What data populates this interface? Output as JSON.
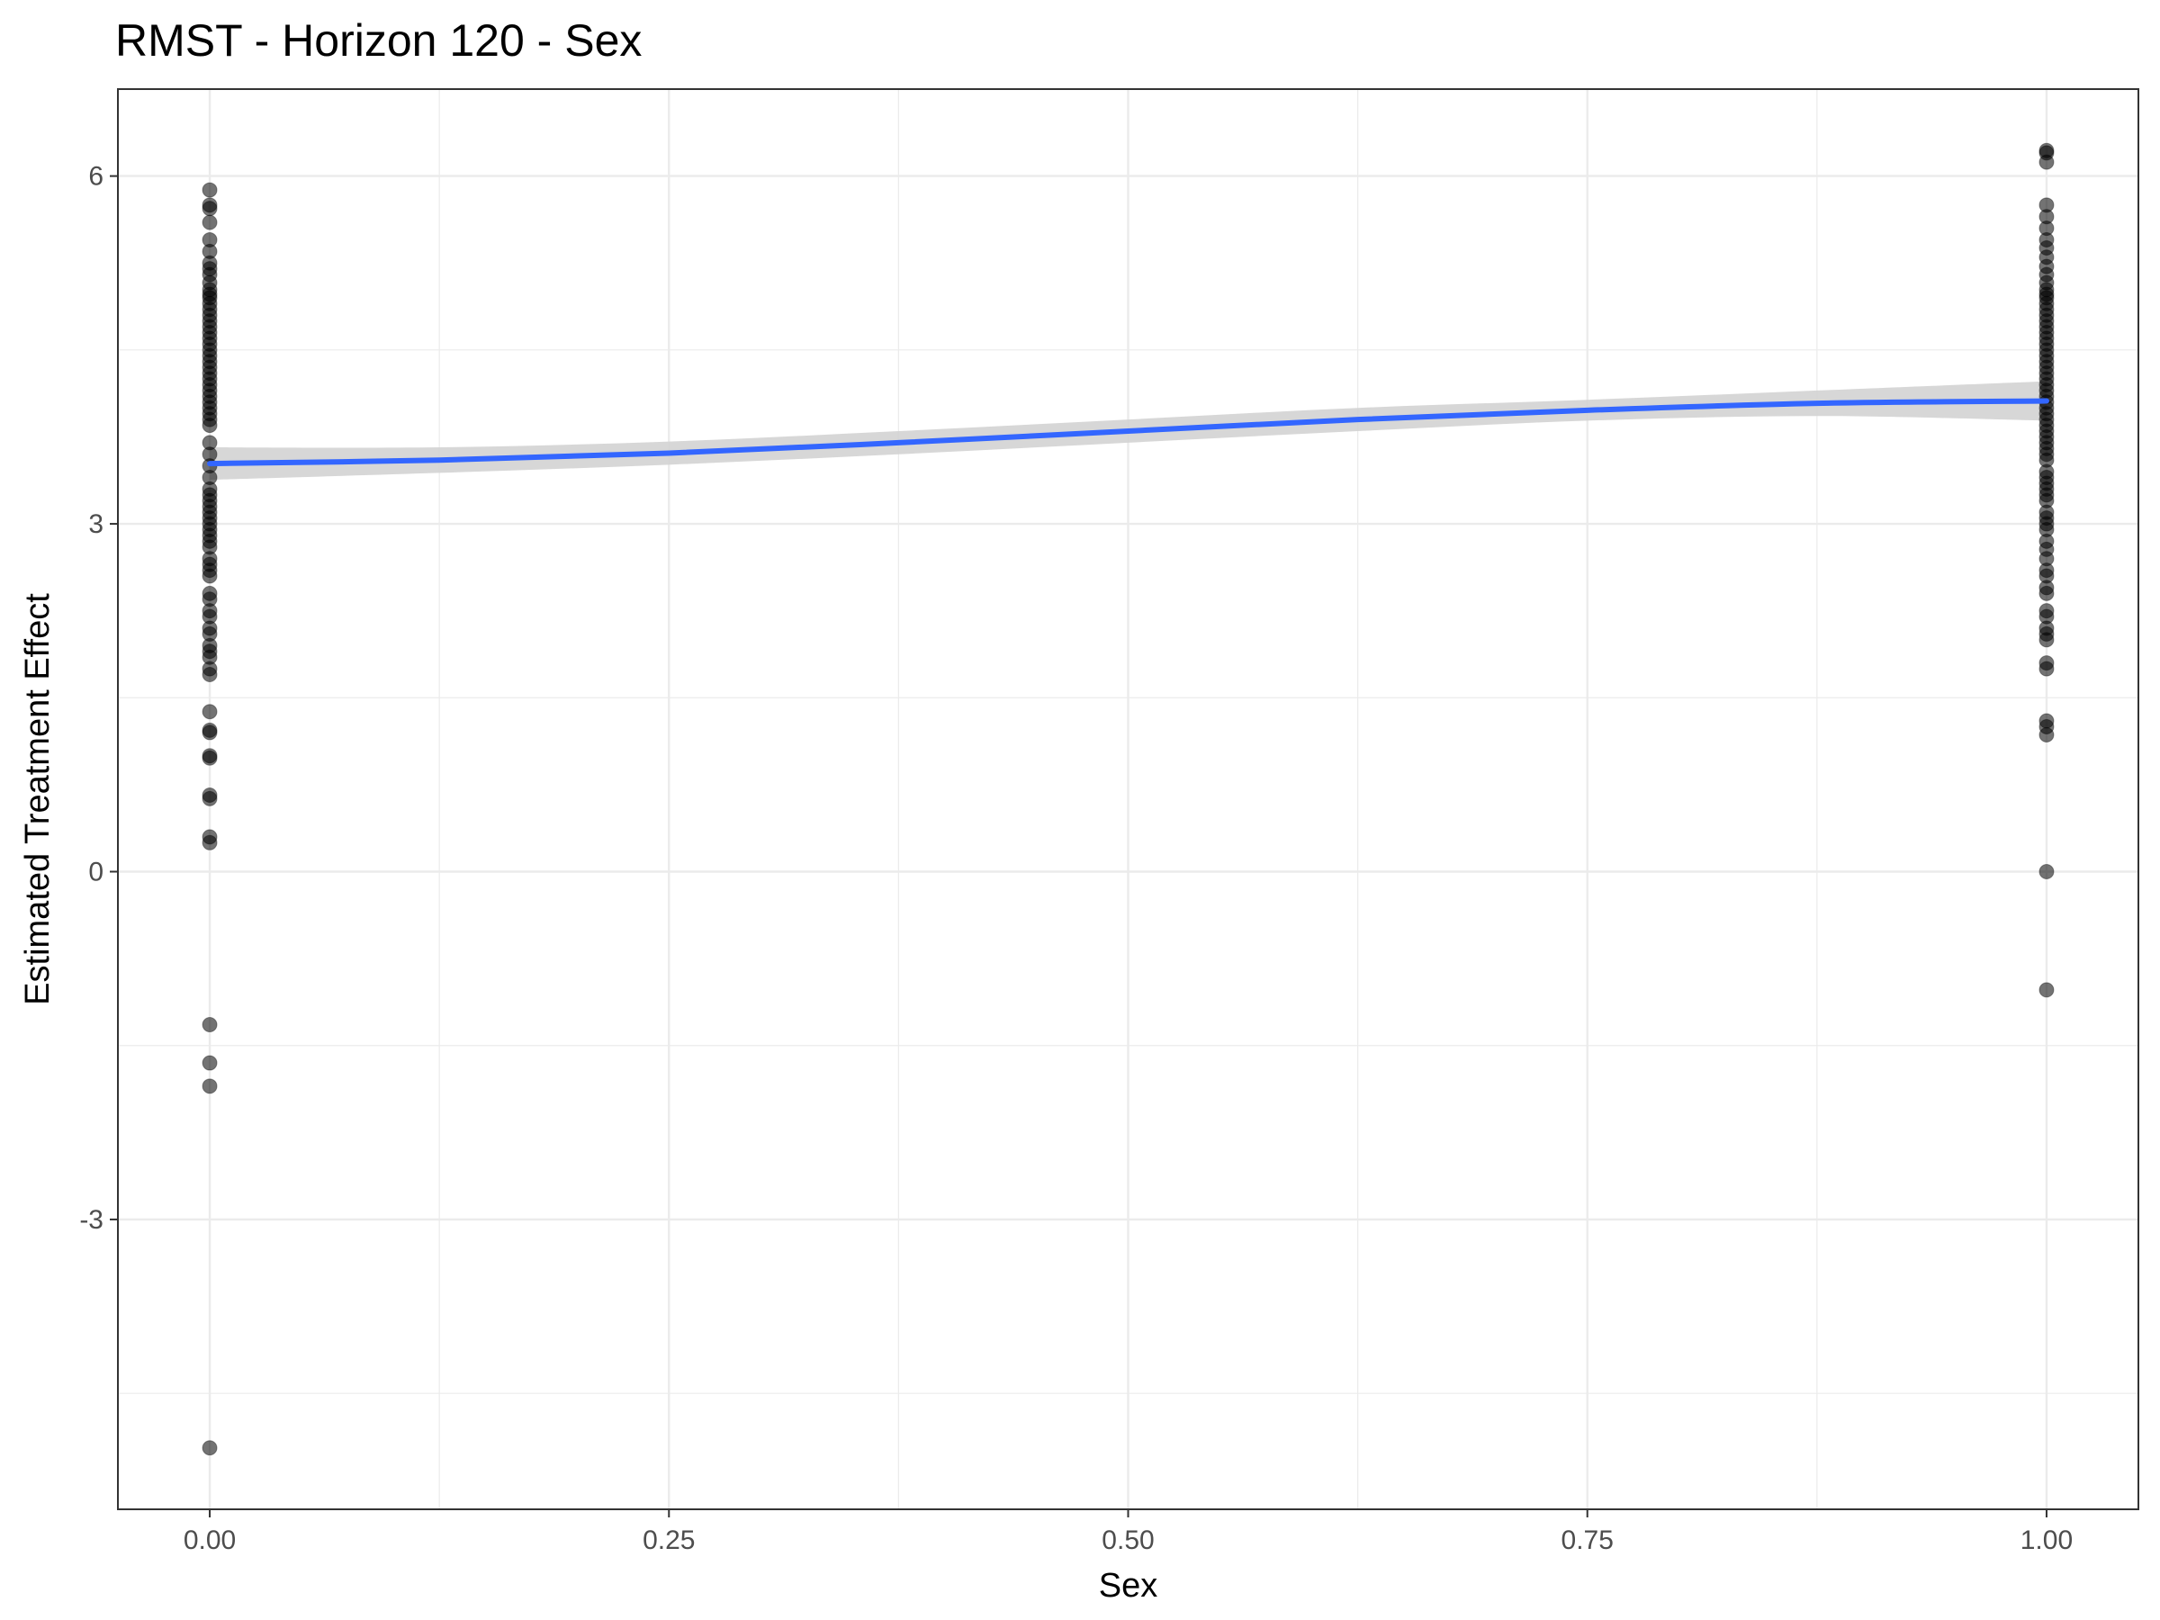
{
  "chart_data": {
    "type": "scatter",
    "title": "RMST - Horizon 120 - Sex",
    "xlabel": "Sex",
    "ylabel": "Estimated Treatment Effect",
    "xlim": [
      -0.05,
      1.05
    ],
    "ylim": [
      -5.5,
      6.75
    ],
    "x_ticks": [
      0.0,
      0.25,
      0.5,
      0.75,
      1.0
    ],
    "x_tick_labels": [
      "0.00",
      "0.25",
      "0.50",
      "0.75",
      "1.00"
    ],
    "y_ticks": [
      -3,
      0,
      3,
      6
    ],
    "y_tick_labels": [
      "-3",
      "0",
      "3",
      "6"
    ],
    "grid": true,
    "legend": "none",
    "colors": {
      "points": "#000000",
      "smooth_line": "#3366FF",
      "confidence_band": "#D3D3D3",
      "grid": "#EBEBEB",
      "panel_border": "#333333"
    },
    "series": [
      {
        "kind": "points",
        "x": 0,
        "values": [
          5.88,
          5.75,
          5.72,
          5.6,
          5.45,
          5.35,
          5.25,
          5.2,
          5.15,
          5.08,
          5.02,
          4.98,
          4.95,
          4.9,
          4.85,
          4.8,
          4.75,
          4.7,
          4.65,
          4.6,
          4.55,
          4.5,
          4.45,
          4.4,
          4.35,
          4.3,
          4.25,
          4.2,
          4.15,
          4.1,
          4.05,
          4.0,
          3.95,
          3.9,
          3.85,
          3.7,
          3.6,
          3.5,
          3.4,
          3.3,
          3.25,
          3.2,
          3.15,
          3.1,
          3.05,
          3.0,
          2.95,
          2.9,
          2.85,
          2.8,
          2.7,
          2.65,
          2.6,
          2.55,
          2.4,
          2.35,
          2.25,
          2.2,
          2.1,
          2.05,
          1.95,
          1.9,
          1.85,
          1.75,
          1.7,
          1.38,
          1.22,
          1.2,
          1.0,
          0.98,
          0.66,
          0.63,
          0.3,
          0.25,
          -1.32,
          -1.65,
          -1.85,
          -4.97
        ]
      },
      {
        "kind": "points",
        "x": 1,
        "values": [
          6.22,
          6.2,
          6.12,
          5.75,
          5.65,
          5.55,
          5.45,
          5.38,
          5.3,
          5.22,
          5.15,
          5.08,
          5.02,
          4.98,
          4.95,
          4.9,
          4.85,
          4.8,
          4.75,
          4.7,
          4.65,
          4.6,
          4.55,
          4.5,
          4.45,
          4.4,
          4.35,
          4.3,
          4.25,
          4.2,
          4.15,
          4.1,
          4.05,
          4.0,
          3.95,
          3.9,
          3.85,
          3.8,
          3.75,
          3.7,
          3.65,
          3.6,
          3.55,
          3.45,
          3.4,
          3.35,
          3.3,
          3.25,
          3.2,
          3.1,
          3.05,
          3.0,
          2.95,
          2.85,
          2.78,
          2.7,
          2.6,
          2.55,
          2.45,
          2.4,
          2.25,
          2.2,
          2.1,
          2.05,
          2.0,
          1.8,
          1.75,
          1.3,
          1.25,
          1.18,
          0.0,
          -1.02
        ]
      },
      {
        "kind": "smooth",
        "x": [
          0.0,
          0.125,
          0.25,
          0.375,
          0.5,
          0.625,
          0.75,
          0.875,
          1.0
        ],
        "values": [
          3.52,
          3.55,
          3.61,
          3.7,
          3.8,
          3.9,
          3.98,
          4.04,
          4.06
        ],
        "lower": [
          3.38,
          3.44,
          3.51,
          3.6,
          3.7,
          3.8,
          3.89,
          3.93,
          3.89
        ],
        "upper": [
          3.66,
          3.66,
          3.71,
          3.8,
          3.9,
          4.0,
          4.07,
          4.15,
          4.23
        ]
      }
    ]
  }
}
